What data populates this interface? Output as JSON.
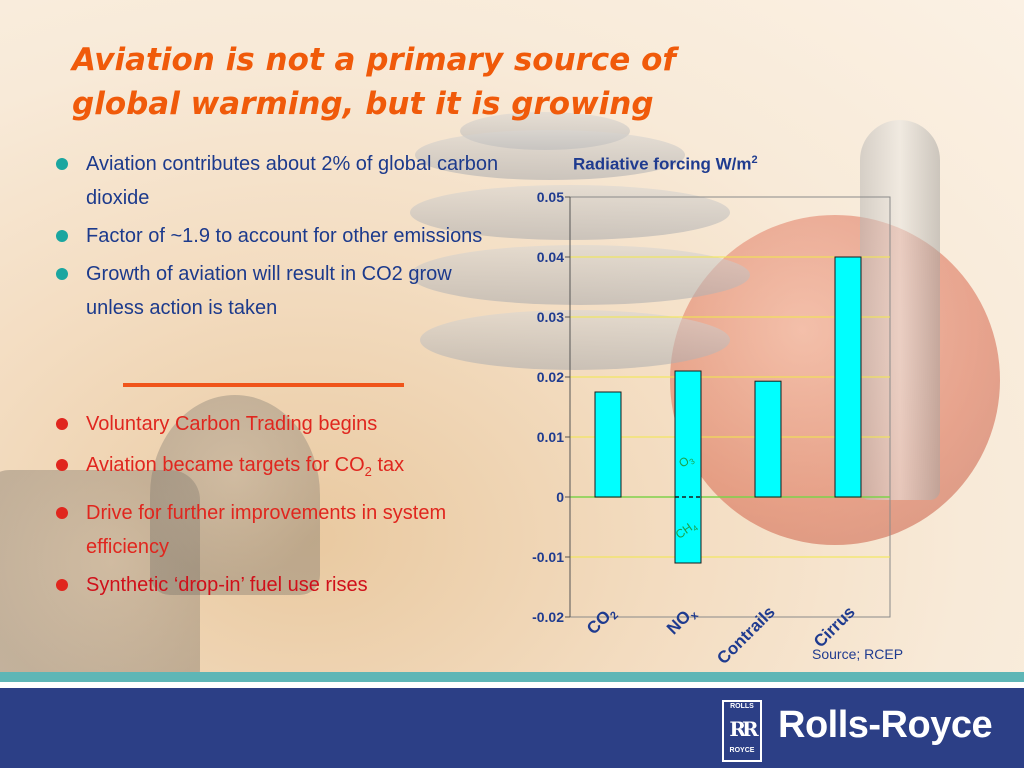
{
  "slide": {
    "title_line1": "Aviation is not a primary source of",
    "title_line2": "global warming, but it is growing",
    "bullets_top": [
      "Aviation contributes about 2% of global carbon dioxide",
      "Factor of ~1.9 to account for other emissions",
      "Growth of aviation will result in CO2 grow unless action is taken"
    ],
    "bullets_bottom": {
      "b1": "Voluntary Carbon Trading begins",
      "b2_pre": "Aviation became targets for CO",
      "b2_sub": "2",
      "b2_post": " tax",
      "b3": "Drive for further improvements in system efficiency",
      "b4": "Synthetic ‘drop-in’ fuel use rises"
    },
    "source": "Source; RCEP"
  },
  "chart_data": {
    "type": "bar",
    "title": "Radiative forcing W/m²",
    "title_text": "Radiative forcing W/m",
    "title_sup": "2",
    "categories": [
      "CO2",
      "NOx",
      "Contrails",
      "Cirrus"
    ],
    "category_labels": [
      {
        "main": "CO",
        "sub": "2"
      },
      {
        "main": "NO",
        "sub": "x"
      },
      {
        "main": "Contrails",
        "sub": ""
      },
      {
        "main": "Cirrus",
        "sub": ""
      }
    ],
    "bars": [
      {
        "category": "CO2",
        "low": 0,
        "high": 0.0175
      },
      {
        "category": "NOx",
        "low": -0.011,
        "high": 0.021,
        "split_at": 0,
        "segment_labels": [
          {
            "main": "O",
            "sub": "3"
          },
          {
            "main": "CH",
            "sub": "4"
          }
        ]
      },
      {
        "category": "Contrails",
        "low": 0,
        "high": 0.0193
      },
      {
        "category": "Cirrus",
        "low": 0,
        "high": 0.04
      }
    ],
    "ylim": [
      -0.02,
      0.05
    ],
    "yticks": [
      0.05,
      0.04,
      0.03,
      0.02,
      0.01,
      0,
      -0.01,
      -0.02
    ],
    "ytick_labels": [
      "0.05",
      "0.04",
      "0.03",
      "0.02",
      "0.01",
      "0",
      "-0.01",
      "-0.02"
    ],
    "grid": true,
    "colors": {
      "bar": "#00ffff",
      "grid": "#f2e84a",
      "zero_line": "#7fd24a",
      "axis": "#1f3b8f",
      "labels": "#1f3b8f"
    }
  },
  "brand": {
    "name": "Rolls-Royce",
    "badge_top": "ROLLS",
    "badge_mid": "RR",
    "badge_bottom": "ROYCE"
  }
}
